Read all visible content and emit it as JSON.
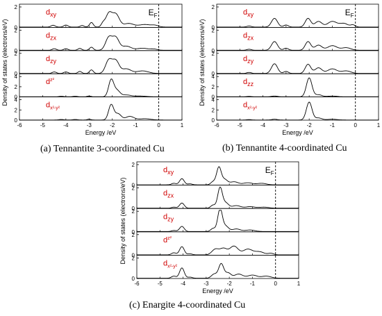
{
  "figure": {
    "captions": [
      "(a) Tennantite 3-coordinated Cu",
      "(b) Tennantite 4-coordinated Cu",
      "(c) Enargite 4-coordinated Cu"
    ]
  },
  "chart_data": [
    {
      "type": "line",
      "caption": "(a) Tennantite 3-coordinated Cu",
      "xlabel": "Energy /eV",
      "ylabel": "Density of states (electrons/eV)",
      "xlim": [
        -6,
        1
      ],
      "xticks": [
        -6,
        -5,
        -4,
        -3,
        -2,
        -1,
        0,
        1
      ],
      "fermi_label": "E",
      "fermi_sub": "F",
      "fermi_x": 0,
      "panels": [
        {
          "label": "d",
          "sub": "xy",
          "sup": "",
          "ylim": [
            0,
            2
          ],
          "yticks": [
            0,
            2
          ],
          "peaks": [
            [
              -4.55,
              0.18,
              0.09
            ],
            [
              -4.0,
              0.2,
              0.09
            ],
            [
              -3.3,
              0.15,
              0.08
            ],
            [
              -2.9,
              0.45,
              0.08
            ],
            [
              -2.4,
              0.35,
              0.08
            ],
            [
              -2.15,
              1.3,
              0.13
            ],
            [
              -1.85,
              1.25,
              0.15
            ],
            [
              -1.3,
              0.35,
              0.22
            ],
            [
              -0.6,
              0.25,
              0.25
            ],
            [
              -0.15,
              0.15,
              0.15
            ]
          ]
        },
        {
          "label": "d",
          "sub": "zx",
          "sup": "",
          "ylim": [
            0,
            2
          ],
          "yticks": [
            0,
            2
          ],
          "peaks": [
            [
              -4.5,
              0.15,
              0.09
            ],
            [
              -4.0,
              0.15,
              0.09
            ],
            [
              -3.4,
              0.18,
              0.08
            ],
            [
              -2.9,
              0.3,
              0.08
            ],
            [
              -2.15,
              1.25,
              0.14
            ],
            [
              -1.85,
              1.2,
              0.14
            ],
            [
              -1.4,
              0.4,
              0.2
            ],
            [
              -0.7,
              0.2,
              0.25
            ],
            [
              -0.2,
              0.1,
              0.15
            ]
          ]
        },
        {
          "label": "d",
          "sub": "zy",
          "sup": "",
          "ylim": [
            0,
            2
          ],
          "yticks": [
            0,
            2
          ],
          "peaks": [
            [
              -4.5,
              0.15,
              0.09
            ],
            [
              -4.0,
              0.15,
              0.09
            ],
            [
              -3.4,
              0.2,
              0.08
            ],
            [
              -2.9,
              0.35,
              0.08
            ],
            [
              -2.15,
              1.3,
              0.14
            ],
            [
              -1.85,
              1.2,
              0.14
            ],
            [
              -1.4,
              0.45,
              0.2
            ],
            [
              -0.7,
              0.25,
              0.25
            ]
          ]
        },
        {
          "label": "d",
          "sub": "",
          "sup": "z²",
          "ylim": [
            0,
            4
          ],
          "yticks": [
            0,
            2,
            4
          ],
          "peaks": [
            [
              -4.2,
              0.1,
              0.1
            ],
            [
              -3.6,
              0.1,
              0.1
            ],
            [
              -3.0,
              0.15,
              0.08
            ],
            [
              -2.05,
              3.3,
              0.11
            ],
            [
              -1.8,
              1.2,
              0.13
            ],
            [
              -1.4,
              0.35,
              0.2
            ],
            [
              -0.8,
              0.15,
              0.25
            ]
          ]
        },
        {
          "label": "d",
          "sub": "x²-y²",
          "sup": "",
          "ylim": [
            0,
            4
          ],
          "yticks": [
            0,
            2,
            4
          ],
          "peaks": [
            [
              -4.2,
              0.1,
              0.1
            ],
            [
              -3.6,
              0.1,
              0.1
            ],
            [
              -3.0,
              0.15,
              0.08
            ],
            [
              -2.05,
              3.0,
              0.11
            ],
            [
              -1.75,
              1.2,
              0.13
            ],
            [
              -1.25,
              0.7,
              0.18
            ],
            [
              -0.6,
              0.25,
              0.25
            ]
          ]
        }
      ]
    },
    {
      "type": "line",
      "caption": "(b) Tennantite 4-coordinated Cu",
      "xlabel": "Energy /eV",
      "ylabel": "Density of states (electrons/eV)",
      "xlim": [
        -6,
        1
      ],
      "xticks": [
        -6,
        -5,
        -4,
        -3,
        -2,
        -1,
        0,
        1
      ],
      "fermi_label": "E",
      "fermi_sub": "F",
      "fermi_x": 0,
      "panels": [
        {
          "label": "d",
          "sub": "xy",
          "sup": "",
          "ylim": [
            0,
            2
          ],
          "yticks": [
            0,
            2
          ],
          "peaks": [
            [
              -4.6,
              0.1,
              0.1
            ],
            [
              -3.5,
              0.85,
              0.13
            ],
            [
              -3.0,
              0.2,
              0.1
            ],
            [
              -2.05,
              0.85,
              0.12
            ],
            [
              -1.6,
              0.55,
              0.15
            ],
            [
              -1.0,
              0.55,
              0.2
            ],
            [
              -0.5,
              0.35,
              0.18
            ],
            [
              -0.1,
              0.2,
              0.1
            ]
          ]
        },
        {
          "label": "d",
          "sub": "zx",
          "sup": "",
          "ylim": [
            0,
            2
          ],
          "yticks": [
            0,
            2
          ],
          "peaks": [
            [
              -4.6,
              0.1,
              0.1
            ],
            [
              -3.5,
              0.85,
              0.13
            ],
            [
              -3.0,
              0.2,
              0.1
            ],
            [
              -2.05,
              0.85,
              0.12
            ],
            [
              -1.6,
              0.5,
              0.15
            ],
            [
              -1.0,
              0.45,
              0.2
            ],
            [
              -0.4,
              0.25,
              0.2
            ]
          ]
        },
        {
          "label": "d",
          "sub": "zy",
          "sup": "",
          "ylim": [
            0,
            2
          ],
          "yticks": [
            0,
            2
          ],
          "peaks": [
            [
              -4.6,
              0.1,
              0.1
            ],
            [
              -3.5,
              0.95,
              0.13
            ],
            [
              -3.0,
              0.2,
              0.1
            ],
            [
              -2.05,
              0.9,
              0.12
            ],
            [
              -1.6,
              0.55,
              0.15
            ],
            [
              -1.0,
              0.45,
              0.2
            ],
            [
              -0.4,
              0.25,
              0.2
            ]
          ]
        },
        {
          "label": "d",
          "sub": "zz",
          "sup": "",
          "ylim": [
            0,
            4
          ],
          "yticks": [
            0,
            2,
            4
          ],
          "peaks": [
            [
              -4.6,
              0.08,
              0.1
            ],
            [
              -3.5,
              0.15,
              0.12
            ],
            [
              -2.0,
              3.7,
              0.12
            ],
            [
              -1.6,
              0.4,
              0.15
            ],
            [
              -1.0,
              0.15,
              0.2
            ]
          ]
        },
        {
          "label": "d",
          "sub": "x²-y²",
          "sup": "",
          "ylim": [
            0,
            4
          ],
          "yticks": [
            0,
            2,
            4
          ],
          "peaks": [
            [
              -4.6,
              0.08,
              0.1
            ],
            [
              -3.5,
              0.15,
              0.12
            ],
            [
              -2.0,
              3.5,
              0.12
            ],
            [
              -1.6,
              0.4,
              0.15
            ],
            [
              -1.0,
              0.15,
              0.2
            ]
          ]
        }
      ]
    },
    {
      "type": "line",
      "caption": "(c) Enargite 4-coordinated Cu",
      "xlabel": "Energy /eV",
      "ylabel": "Density of states (electrons/eV)",
      "xlim": [
        -6,
        1
      ],
      "xticks": [
        -6,
        -5,
        -4,
        -3,
        -2,
        -1,
        0,
        1
      ],
      "fermi_label": "E",
      "fermi_sub": "F",
      "fermi_x": 0,
      "panels": [
        {
          "label": "d",
          "sub": "xy",
          "sup": "",
          "ylim": [
            0,
            2
          ],
          "yticks": [
            0,
            2
          ],
          "peaks": [
            [
              -4.4,
              0.15,
              0.1
            ],
            [
              -4.05,
              0.6,
              0.1
            ],
            [
              -3.7,
              0.1,
              0.1
            ],
            [
              -2.7,
              0.3,
              0.1
            ],
            [
              -2.45,
              1.7,
              0.1
            ],
            [
              -2.2,
              0.5,
              0.12
            ],
            [
              -1.8,
              0.3,
              0.18
            ],
            [
              -1.2,
              0.2,
              0.2
            ],
            [
              -0.6,
              0.15,
              0.2
            ]
          ]
        },
        {
          "label": "d",
          "sub": "zx",
          "sup": "",
          "ylim": [
            0,
            2
          ],
          "yticks": [
            0,
            2
          ],
          "peaks": [
            [
              -4.4,
              0.1,
              0.1
            ],
            [
              -4.05,
              0.5,
              0.1
            ],
            [
              -2.7,
              0.3,
              0.1
            ],
            [
              -2.4,
              2.0,
              0.1
            ],
            [
              -2.15,
              0.5,
              0.12
            ],
            [
              -1.7,
              0.25,
              0.18
            ],
            [
              -1.1,
              0.15,
              0.2
            ],
            [
              -0.5,
              0.1,
              0.2
            ]
          ]
        },
        {
          "label": "d",
          "sub": "zy",
          "sup": "",
          "ylim": [
            0,
            2
          ],
          "yticks": [
            0,
            2
          ],
          "peaks": [
            [
              -4.4,
              0.1,
              0.1
            ],
            [
              -4.05,
              0.5,
              0.1
            ],
            [
              -2.7,
              0.3,
              0.1
            ],
            [
              -2.4,
              2.2,
              0.1
            ],
            [
              -2.15,
              0.5,
              0.12
            ],
            [
              -1.7,
              0.25,
              0.18
            ],
            [
              -1.1,
              0.15,
              0.2
            ]
          ]
        },
        {
          "label": "d",
          "sub": "",
          "sup": "z²",
          "ylim": [
            0,
            2
          ],
          "yticks": [
            0,
            2
          ],
          "peaks": [
            [
              -4.4,
              0.2,
              0.1
            ],
            [
              -4.05,
              0.8,
              0.1
            ],
            [
              -3.7,
              0.1,
              0.1
            ],
            [
              -2.6,
              0.55,
              0.15
            ],
            [
              -2.25,
              0.6,
              0.15
            ],
            [
              -1.8,
              0.85,
              0.18
            ],
            [
              -1.2,
              0.55,
              0.2
            ],
            [
              -0.7,
              0.3,
              0.2
            ],
            [
              -0.2,
              0.15,
              0.12
            ]
          ]
        },
        {
          "label": "d",
          "sub": "x²-y²",
          "sup": "",
          "ylim": [
            0,
            2
          ],
          "yticks": [
            0,
            2
          ],
          "peaks": [
            [
              -4.4,
              0.2,
              0.1
            ],
            [
              -4.05,
              1.0,
              0.1
            ],
            [
              -3.7,
              0.1,
              0.1
            ],
            [
              -2.65,
              0.4,
              0.12
            ],
            [
              -2.35,
              1.4,
              0.11
            ],
            [
              -2.05,
              0.5,
              0.12
            ],
            [
              -1.6,
              0.4,
              0.18
            ],
            [
              -1.0,
              0.3,
              0.2
            ],
            [
              -0.4,
              0.2,
              0.2
            ]
          ]
        }
      ]
    }
  ]
}
